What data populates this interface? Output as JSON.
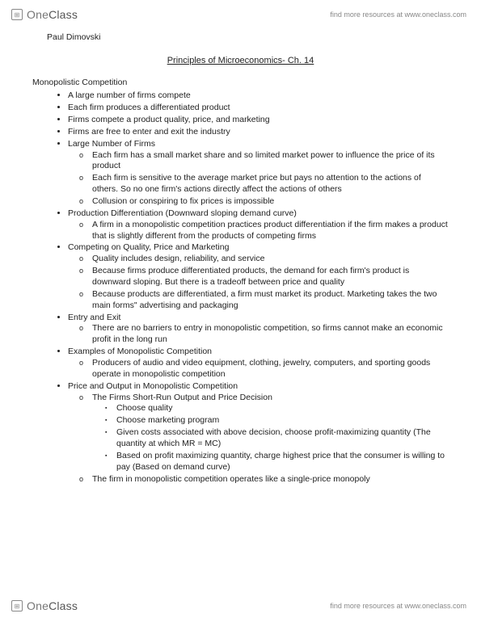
{
  "brand": {
    "logo_one": "One",
    "logo_class": "Class",
    "tagline": "find more resources at www.oneclass.com"
  },
  "author": "Paul Dimovski",
  "title": "Principles of Microeconomics- Ch. 14",
  "section_heading": "Monopolistic Competition",
  "bullets": [
    {
      "text": "A large number of firms compete"
    },
    {
      "text": "Each firm produces a differentiated product"
    },
    {
      "text": "Firms compete a product quality, price, and marketing"
    },
    {
      "text": "Firms are free to enter and exit the industry"
    },
    {
      "text": "Large Number of Firms",
      "sub": [
        {
          "text": "Each firm has a small market share and so limited market power to influence the price of its product"
        },
        {
          "text": "Each firm is sensitive to the average market price but pays no attention to the actions of others. So no one firm's actions directly affect the actions of others"
        },
        {
          "text": "Collusion or conspiring to fix prices is impossible"
        }
      ]
    },
    {
      "text": "Production Differentiation (Downward sloping demand curve)",
      "sub": [
        {
          "text": "A firm in a monopolistic competition practices product differentiation if the firm makes a product that is slightly different from the products of competing firms"
        }
      ]
    },
    {
      "text": "Competing on Quality, Price and Marketing",
      "sub": [
        {
          "text": "Quality includes design, reliability, and service"
        },
        {
          "text": "Because firms produce differentiated products, the demand for each firm's product is downward sloping. But there is a tradeoff between price and quality"
        },
        {
          "text": "Because products are differentiated, a firm must market its product. Marketing takes the two main forms\" advertising and packaging"
        }
      ]
    },
    {
      "text": "Entry and Exit",
      "sub": [
        {
          "text": "There are no barriers to entry in monopolistic competition, so firms cannot make an economic profit in the long run"
        }
      ]
    },
    {
      "text": "Examples of Monopolistic Competition",
      "sub": [
        {
          "text": "Producers of audio and video equipment, clothing, jewelry, computers, and sporting goods operate in monopolistic competition"
        }
      ]
    },
    {
      "text": "Price and Output in Monopolistic Competition",
      "sub": [
        {
          "text": "The Firms Short-Run Output and Price Decision",
          "sub2": [
            {
              "text": "Choose quality"
            },
            {
              "text": "Choose marketing program"
            },
            {
              "text": "Given costs associated with above decision, choose profit-maximizing quantity (The quantity at which MR = MC)"
            },
            {
              "text": "Based on profit maximizing quantity, charge highest price that the consumer is willing to pay (Based on demand curve)"
            }
          ]
        },
        {
          "text": "The firm in monopolistic competition operates like a single-price monopoly"
        }
      ]
    }
  ]
}
